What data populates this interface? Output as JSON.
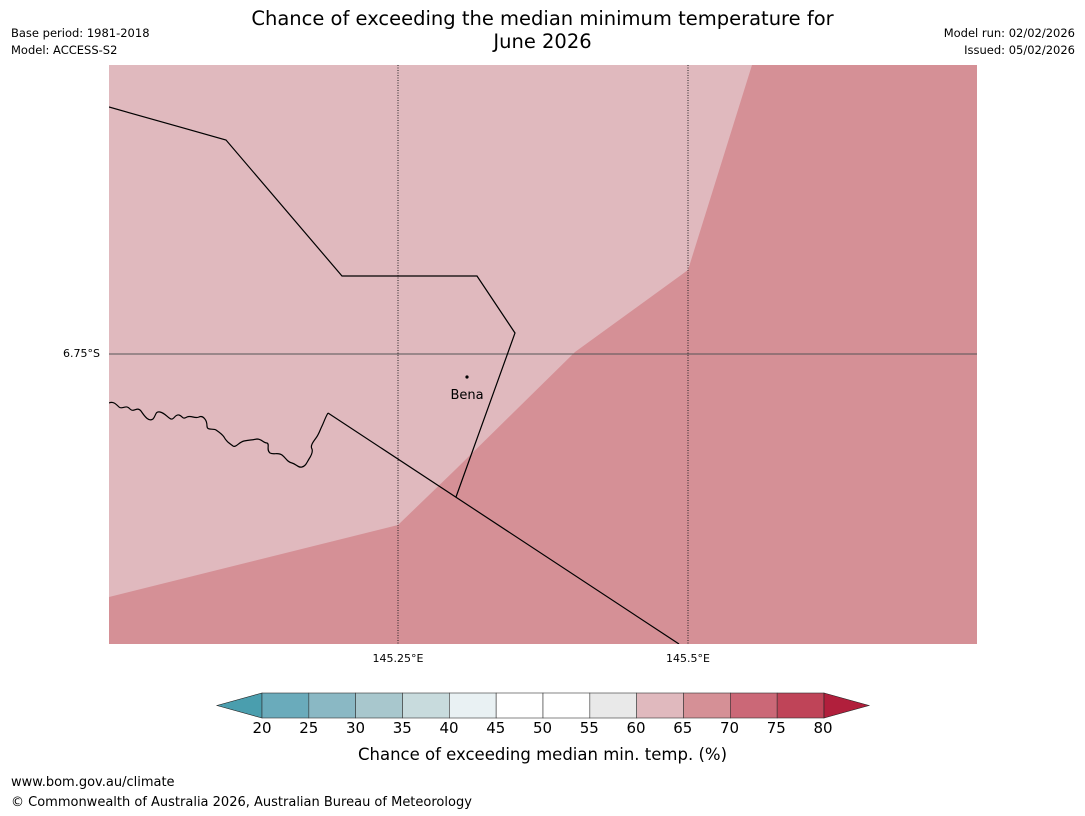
{
  "header": {
    "base_period": "Base period: 1981-2018",
    "model": "Model: ACCESS-S2",
    "title_line1": "Chance of exceeding the median minimum temperature for",
    "title_line2": "June 2026",
    "model_run": "Model run: 02/02/2026",
    "issued": "Issued: 05/02/2026"
  },
  "map": {
    "lat_gridlines": [
      "6.75°S"
    ],
    "lon_gridlines": [
      "145.25°E",
      "145.5°E"
    ],
    "places": [
      {
        "name": "Bena"
      }
    ],
    "region_colors": {
      "band_60_65": "#e0b9be",
      "band_65_70": "#d59096"
    }
  },
  "colorbar": {
    "ticks": [
      "20",
      "25",
      "30",
      "35",
      "40",
      "45",
      "50",
      "55",
      "60",
      "65",
      "70",
      "75",
      "80"
    ],
    "colors": [
      "#6aabbb",
      "#8ab8c4",
      "#a8c7cd",
      "#c8dbdd",
      "#e9f1f3",
      "#ffffff",
      "#ffffff",
      "#e9e9e9",
      "#e0b9be",
      "#d59096",
      "#cb6877",
      "#bf4458"
    ],
    "under_color": "#4a9eae",
    "over_color": "#b11f3c",
    "label": "Chance of exceeding median min. temp. (%)"
  },
  "footer": {
    "url": "www.bom.gov.au/climate",
    "copyright": "© Commonwealth of Australia 2026, Australian Bureau of Meteorology"
  }
}
